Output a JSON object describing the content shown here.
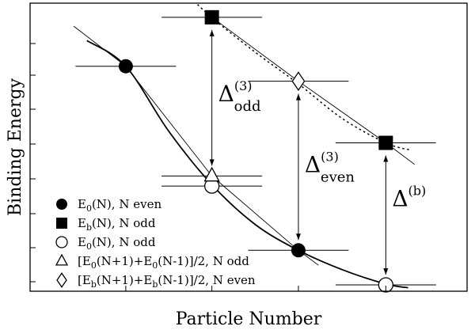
{
  "chart_data": {
    "type": "scatter",
    "xlabel": "Particle Number",
    "ylabel": "Binding Energy",
    "xlim": [
      0,
      1
    ],
    "ylim": [
      0,
      1
    ],
    "grid": false,
    "legend_position": "bottom-left",
    "x": [
      0.219,
      0.416,
      0.614,
      0.814
    ],
    "series": [
      {
        "name": "E0(N), N even",
        "marker": "filled-circle",
        "points": [
          {
            "x": 0.219,
            "y": 0.781
          },
          {
            "x": 0.614,
            "y": 0.142
          }
        ]
      },
      {
        "name": "Eb(N), N odd",
        "marker": "filled-square",
        "points": [
          {
            "x": 0.416,
            "y": 0.951
          },
          {
            "x": 0.814,
            "y": 0.515
          }
        ]
      },
      {
        "name": "E0(N), N odd",
        "marker": "open-circle",
        "points": [
          {
            "x": 0.416,
            "y": 0.365
          },
          {
            "x": 0.814,
            "y": 0.022
          }
        ]
      },
      {
        "name": "[E0(N+1)+E0(N-1)]/2, N odd",
        "marker": "open-triangle",
        "points": [
          {
            "x": 0.416,
            "y": 0.4
          }
        ]
      },
      {
        "name": "[Eb(N+1)+Eb(N-1)]/2, N even",
        "marker": "open-diamond",
        "points": [
          {
            "x": 0.614,
            "y": 0.729
          }
        ]
      }
    ],
    "curves": {
      "solid": [
        [
          0.13,
          0.87
        ],
        [
          0.219,
          0.781
        ],
        [
          0.317,
          0.556
        ],
        [
          0.416,
          0.37
        ],
        [
          0.515,
          0.232
        ],
        [
          0.614,
          0.142
        ],
        [
          0.714,
          0.075
        ],
        [
          0.814,
          0.025
        ],
        [
          0.865,
          0.012
        ]
      ],
      "dotted": [
        [
          0.36,
          1.03
        ],
        [
          0.416,
          0.95
        ],
        [
          0.515,
          0.83
        ],
        [
          0.614,
          0.72
        ],
        [
          0.714,
          0.6
        ],
        [
          0.814,
          0.515
        ],
        [
          0.87,
          0.49
        ]
      ],
      "line_low": [
        [
          0.1,
          0.92
        ],
        [
          0.219,
          0.781
        ],
        [
          0.416,
          0.4
        ],
        [
          0.614,
          0.142
        ],
        [
          0.66,
          0.09
        ]
      ],
      "line_high": [
        [
          0.416,
          0.951
        ],
        [
          0.614,
          0.729
        ],
        [
          0.814,
          0.515
        ],
        [
          0.88,
          0.44
        ]
      ]
    },
    "gaps": [
      {
        "label_main": "Δ",
        "sup": "(3)",
        "sub": "odd",
        "x": 0.416,
        "y_top": 0.951,
        "y_bottom": 0.4
      },
      {
        "label_main": "Δ",
        "sup": "(3)",
        "sub": "even",
        "x": 0.614,
        "y_top": 0.729,
        "y_bottom": 0.142
      },
      {
        "label_main": "Δ",
        "sup": "(b)",
        "sub": "",
        "x": 0.814,
        "y_top": 0.515,
        "y_bottom": 0.022
      }
    ],
    "legend": [
      {
        "marker": "filled-circle",
        "text": "E",
        "sub": "0",
        "rest": "(N), N even"
      },
      {
        "marker": "filled-square",
        "text": "E",
        "sub": "b",
        "rest": "(N), N odd"
      },
      {
        "marker": "open-circle",
        "text": "E",
        "sub": "0",
        "rest": "(N), N odd"
      },
      {
        "marker": "open-triangle",
        "text": "[E",
        "sub": "0",
        "rest": "(N+1)+E",
        "sub2": "0",
        "rest2": "(N-1)]/2, N odd"
      },
      {
        "marker": "open-diamond",
        "text": "[E",
        "sub": "b",
        "rest": "(N+1)+E",
        "sub2": "b",
        "rest2": "(N-1)]/2, N even"
      }
    ]
  }
}
